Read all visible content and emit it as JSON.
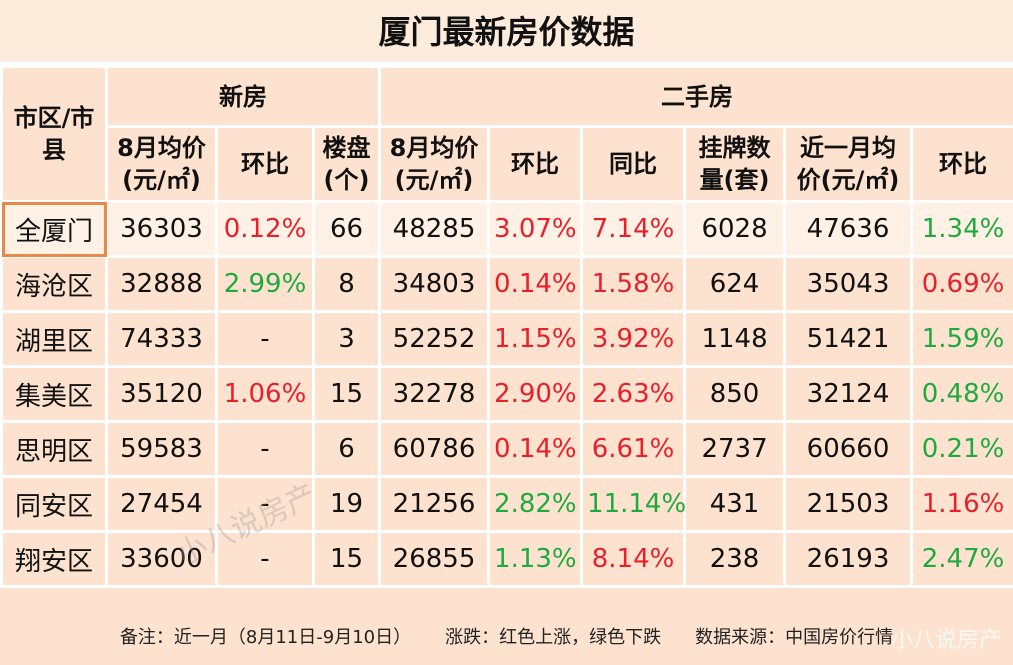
{
  "title": "厦门最新房价数据",
  "table": {
    "corner": "市区/市县",
    "groups": [
      "新房",
      "二手房"
    ],
    "columns": [
      "8月均价(元/㎡)",
      "环比",
      "楼盘(个)",
      "8月均价(元/㎡)",
      "环比",
      "同比",
      "挂牌数量(套)",
      "近一月均价(元/㎡)",
      "环比"
    ],
    "rows": [
      [
        "全厦门",
        "36303",
        "0.12%",
        "66",
        "48285",
        "3.07%",
        "7.14%",
        "6028",
        "47636",
        "1.34%"
      ],
      [
        "海沧区",
        "32888",
        "2.99%",
        "8",
        "34803",
        "0.14%",
        "1.58%",
        "624",
        "35043",
        "0.69%"
      ],
      [
        "湖里区",
        "74333",
        "-",
        "3",
        "52252",
        "1.15%",
        "3.92%",
        "1148",
        "51421",
        "1.59%"
      ],
      [
        "集美区",
        "35120",
        "1.06%",
        "15",
        "32278",
        "2.90%",
        "2.63%",
        "850",
        "32124",
        "0.48%"
      ],
      [
        "思明区",
        "59583",
        "-",
        "6",
        "60786",
        "0.14%",
        "6.61%",
        "2737",
        "60660",
        "0.21%"
      ],
      [
        "同安区",
        "27454",
        "-",
        "19",
        "21256",
        "2.82%",
        "11.14%",
        "431",
        "21503",
        "1.16%"
      ],
      [
        "翔安区",
        "33600",
        "-",
        "15",
        "26855",
        "1.13%",
        "8.14%",
        "238",
        "26193",
        "2.47%"
      ]
    ],
    "row_colors": [
      [
        null,
        null,
        "#e8202a",
        null,
        null,
        "#e8202a",
        "#e8202a",
        null,
        null,
        "#1faa3f"
      ],
      [
        null,
        null,
        "#1faa3f",
        null,
        null,
        "#e8202a",
        "#e8202a",
        null,
        null,
        "#e8202a"
      ],
      [
        null,
        null,
        null,
        null,
        null,
        "#e8202a",
        "#e8202a",
        null,
        null,
        "#1faa3f"
      ],
      [
        null,
        null,
        "#e8202a",
        null,
        null,
        "#e8202a",
        "#e8202a",
        null,
        null,
        "#1faa3f"
      ],
      [
        null,
        null,
        null,
        null,
        null,
        "#e8202a",
        "#e8202a",
        null,
        null,
        "#1faa3f"
      ],
      [
        null,
        null,
        null,
        null,
        null,
        "#1faa3f",
        "#1faa3f",
        null,
        null,
        "#e8202a"
      ],
      [
        null,
        null,
        null,
        null,
        null,
        "#1faa3f",
        "#e8202a",
        null,
        null,
        "#1faa3f"
      ]
    ]
  },
  "footnote": [
    "备注：近一月（8月11日-9月10日）",
    "涨跌：红色上涨，绿色下跌",
    "数据来源：中国房价行情"
  ],
  "watermark": "小八说房产"
}
